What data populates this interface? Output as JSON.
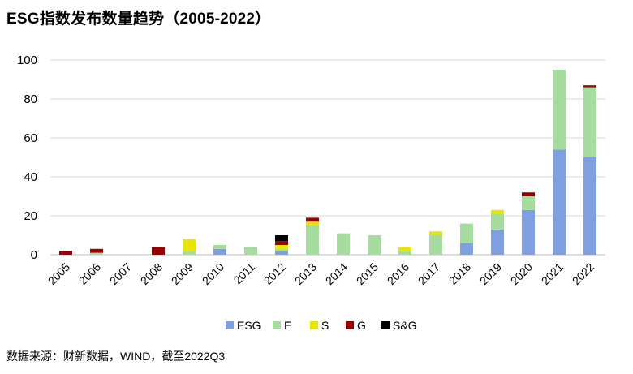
{
  "chart_data": {
    "type": "bar",
    "stacked": true,
    "title": "ESG指数发布数量趋势（2005-2022）",
    "source": "数据来源：财新数据，WIND，截至2022Q3",
    "xlabel": "",
    "ylabel": "",
    "ylim": [
      0,
      100
    ],
    "yticks": [
      0,
      20,
      40,
      60,
      80,
      100
    ],
    "grid": true,
    "legend_position": "bottom",
    "categories": [
      "2005",
      "2006",
      "2007",
      "2008",
      "2009",
      "2010",
      "2011",
      "2012",
      "2013",
      "2014",
      "2015",
      "2016",
      "2017",
      "2018",
      "2019",
      "2020",
      "2021",
      "2022"
    ],
    "series": [
      {
        "name": "ESG",
        "color": "#7f9fe0",
        "values": [
          0,
          0,
          0,
          0,
          0,
          3,
          0,
          2,
          0,
          0,
          0,
          0,
          0,
          6,
          13,
          23,
          54,
          50
        ]
      },
      {
        "name": "E",
        "color": "#a6dca0",
        "values": [
          0,
          1,
          0,
          0,
          2,
          2,
          4,
          1,
          15,
          11,
          10,
          2,
          10,
          10,
          8,
          7,
          41,
          36
        ]
      },
      {
        "name": "S",
        "color": "#e6e600",
        "values": [
          0,
          0,
          0,
          0,
          6,
          0,
          0,
          2,
          2,
          0,
          0,
          2,
          2,
          0,
          2,
          0,
          0,
          0
        ]
      },
      {
        "name": "G",
        "color": "#9a0000",
        "values": [
          2,
          2,
          0,
          4,
          0,
          0,
          0,
          2,
          2,
          0,
          0,
          0,
          0,
          0,
          0,
          2,
          0,
          1
        ]
      },
      {
        "name": "S&G",
        "color": "#000000",
        "values": [
          0,
          0,
          0,
          0,
          0,
          0,
          0,
          3,
          0,
          0,
          0,
          0,
          0,
          0,
          0,
          0,
          0,
          0
        ]
      }
    ]
  }
}
